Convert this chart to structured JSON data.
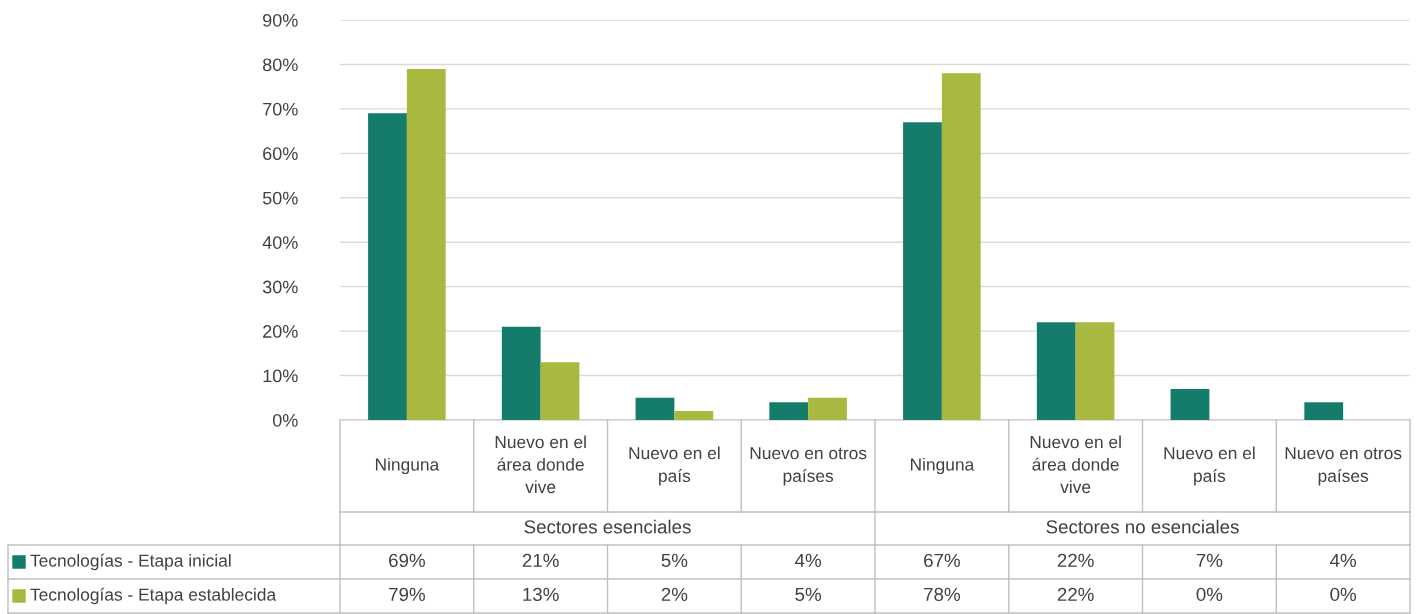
{
  "chart_data": {
    "type": "bar",
    "categories": [
      "Ninguna",
      "Nuevo en el área donde vive",
      "Nuevo en el país",
      "Nuevo en otros países",
      "Ninguna",
      "Nuevo en el área donde vive",
      "Nuevo en el país",
      "Nuevo en otros países"
    ],
    "series": [
      {
        "name": "Tecnologías - Etapa inicial",
        "color": "#157b6b",
        "values": [
          69,
          21,
          5,
          4,
          67,
          22,
          7,
          4
        ],
        "value_labels": [
          "69%",
          "21%",
          "5%",
          "4%",
          "67%",
          "22%",
          "7%",
          "4%"
        ]
      },
      {
        "name": "Tecnologías - Etapa establecida",
        "color": "#a9b83e",
        "values": [
          79,
          13,
          2,
          5,
          78,
          22,
          0,
          0
        ],
        "value_labels": [
          "79%",
          "13%",
          "2%",
          "5%",
          "78%",
          "22%",
          "0%",
          "0%"
        ]
      }
    ],
    "annotations": [
      "Sectores esenciales",
      "Sectores no esenciales"
    ],
    "ylim": [
      0,
      90
    ],
    "yticks": [
      {
        "value": 0,
        "label": "0%"
      },
      {
        "value": 10,
        "label": "10%"
      },
      {
        "value": 20,
        "label": "20%"
      },
      {
        "value": 30,
        "label": "30%"
      },
      {
        "value": 40,
        "label": "40%"
      },
      {
        "value": 50,
        "label": "50%"
      },
      {
        "value": 60,
        "label": "60%"
      },
      {
        "value": 70,
        "label": "70%"
      },
      {
        "value": 80,
        "label": "80%"
      },
      {
        "value": 90,
        "label": "90%"
      }
    ],
    "grid": "y",
    "legend": "left"
  }
}
